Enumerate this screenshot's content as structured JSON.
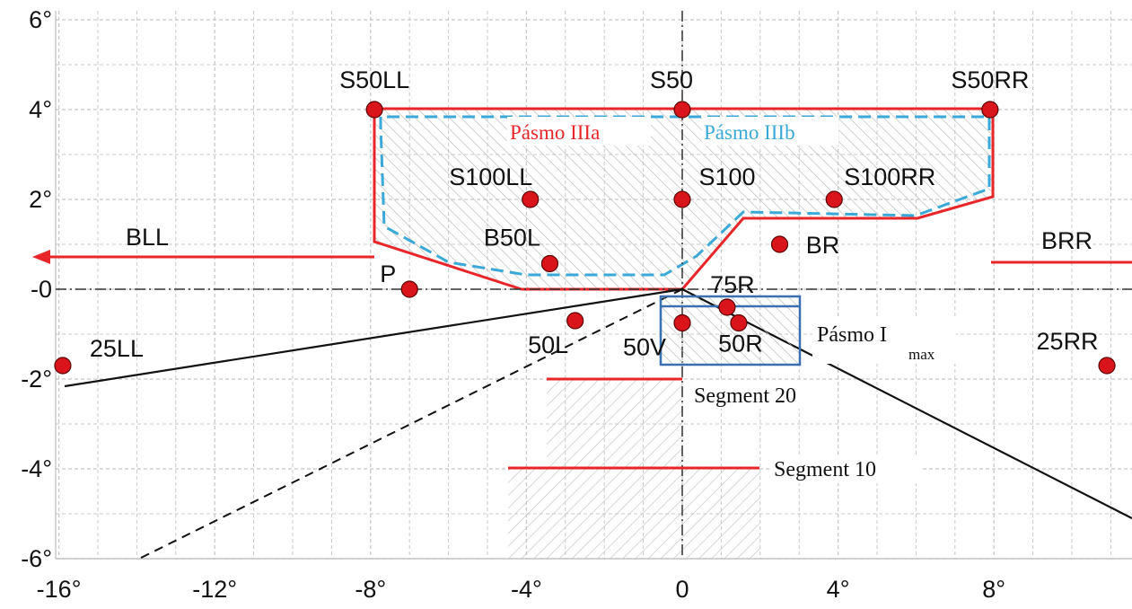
{
  "colors": {
    "red": "#e8262a",
    "cyan": "#3aa9d8",
    "blue": "#3a6fb0",
    "grid": "#c8c8c8",
    "black": "#111111",
    "point_fill": "#d9141b"
  },
  "axes": {
    "x_range": [
      -16,
      11
    ],
    "y_range": [
      -6,
      6
    ],
    "x_ticks": [
      {
        "value": -16,
        "label": "-16°"
      },
      {
        "value": -12,
        "label": "-12°"
      },
      {
        "value": -8,
        "label": "-8°"
      },
      {
        "value": -4,
        "label": "-4°"
      },
      {
        "value": 0,
        "label": "0"
      },
      {
        "value": 4,
        "label": "4°"
      },
      {
        "value": 8,
        "label": "8°"
      }
    ],
    "y_ticks": [
      {
        "value": 6,
        "label": "6°"
      },
      {
        "value": 4,
        "label": "4°"
      },
      {
        "value": 2,
        "label": "2°"
      },
      {
        "value": 0,
        "label": "-0"
      },
      {
        "value": -2,
        "label": "-2°"
      },
      {
        "value": -4,
        "label": "-4°"
      },
      {
        "value": -6,
        "label": "-6°"
      }
    ],
    "grid_minor_step": 1,
    "grid": true
  },
  "points": [
    {
      "name": "S50LL",
      "x": -7.9,
      "y": 4.0
    },
    {
      "name": "S50",
      "x": 0,
      "y": 4.0
    },
    {
      "name": "S50RR",
      "x": 7.9,
      "y": 4.0
    },
    {
      "name": "S100LL",
      "x": -3.9,
      "y": 2.0
    },
    {
      "name": "S100",
      "x": 0,
      "y": 2.0
    },
    {
      "name": "S100RR",
      "x": 3.9,
      "y": 2.0
    },
    {
      "name": "B50L",
      "x": -3.4,
      "y": 0.57
    },
    {
      "name": "BR",
      "x": 2.5,
      "y": 1.0
    },
    {
      "name": "P",
      "x": -7.0,
      "y": 0.0
    },
    {
      "name": "75R",
      "x": 1.15,
      "y": -0.4
    },
    {
      "name": "50L",
      "x": -2.75,
      "y": -0.7
    },
    {
      "name": "50V",
      "x": 0,
      "y": -0.75
    },
    {
      "name": "50R",
      "x": 1.45,
      "y": -0.75
    },
    {
      "name": "25LL",
      "x": -15.9,
      "y": -1.7
    },
    {
      "name": "25RR",
      "x": 10.9,
      "y": -1.7
    }
  ],
  "labels": {
    "zone_a": "Pásmo IIIa",
    "zone_b": "Pásmo IIIb",
    "imax_main": "Pásmo I",
    "imax_sub": "max",
    "segment_20": "Segment 20",
    "segment_10": "Segment 10",
    "bll": "BLL",
    "brr": "BRR"
  }
}
